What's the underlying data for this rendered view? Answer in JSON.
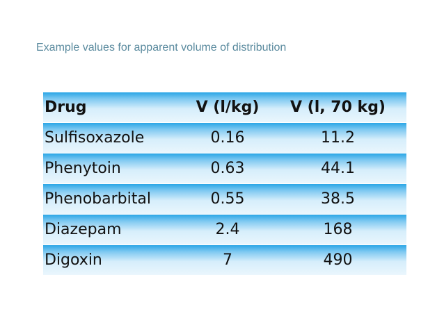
{
  "title": "Example values for apparent volume of distribution",
  "table": {
    "headers": [
      "Drug",
      "V (l/kg)",
      "V (l, 70 kg)"
    ],
    "rows": [
      [
        "Sulfisoxazole",
        "0.16",
        "11.2"
      ],
      [
        "Phenytoin",
        "0.63",
        "44.1"
      ],
      [
        "Phenobarbital",
        "0.55",
        "38.5"
      ],
      [
        "Diazepam",
        "2.4",
        "168"
      ],
      [
        "Digoxin",
        "7",
        "490"
      ]
    ]
  },
  "colors": {
    "title": "#5a8a9e",
    "row_gradient_top": "#2aa6e6",
    "row_gradient_bottom": "#eaf6fd"
  }
}
